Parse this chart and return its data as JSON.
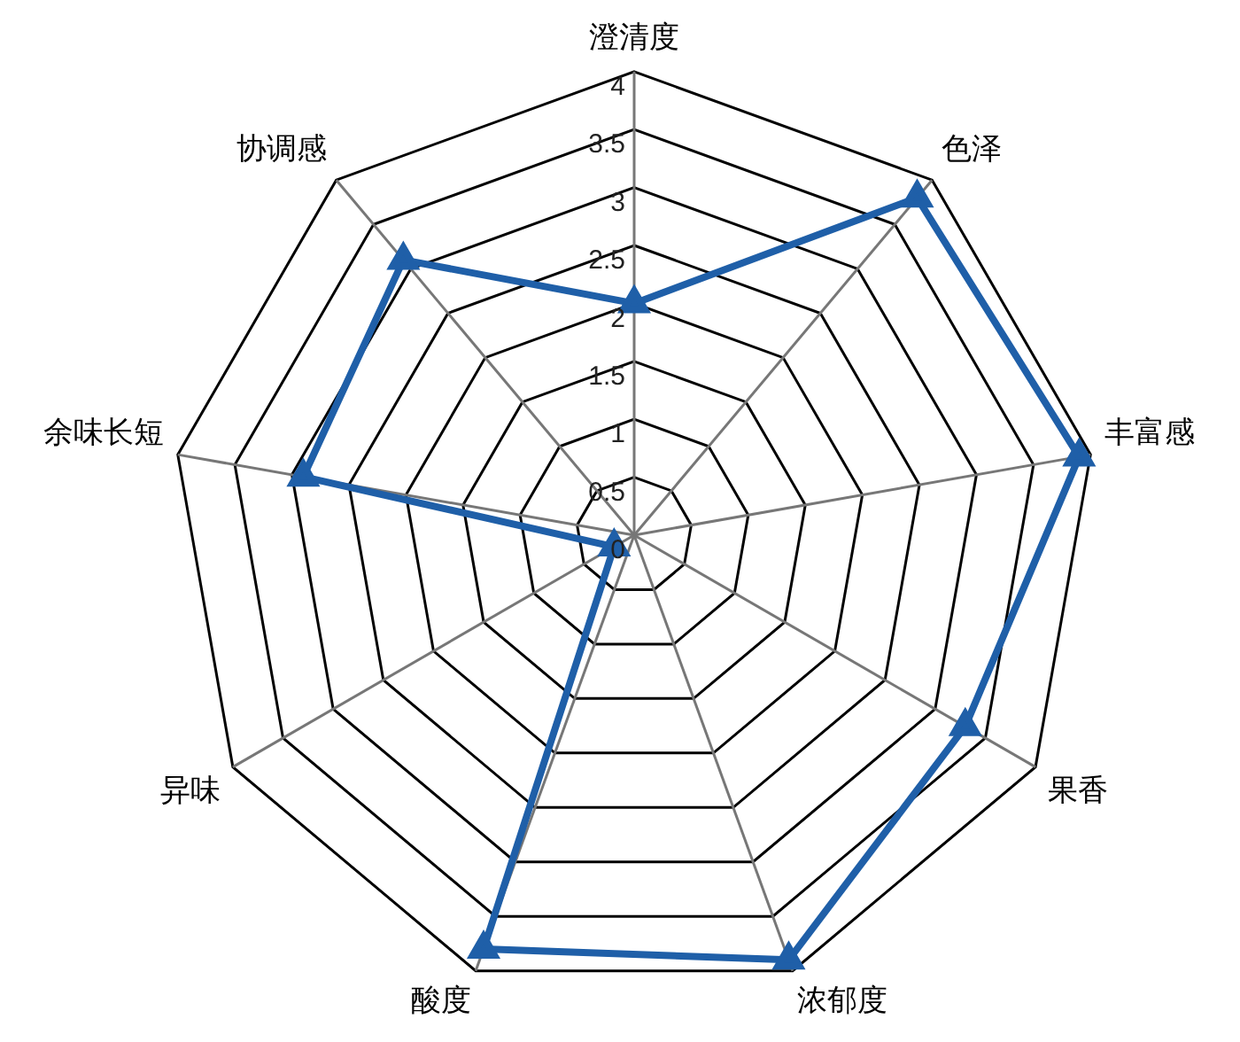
{
  "chart_data": {
    "type": "radar",
    "categories": [
      "澄清度",
      "色泽",
      "丰富感",
      "果香",
      "浓郁度",
      "酸度",
      "异味",
      "余味长短",
      "协调感"
    ],
    "series": [
      {
        "color": "#1f5fa8",
        "values": [
          2.0,
          3.8,
          3.9,
          3.3,
          3.9,
          3.8,
          0.2,
          2.9,
          3.1
        ]
      }
    ],
    "ylim": [
      0,
      4
    ],
    "yticks": [
      0,
      0.5,
      1,
      1.5,
      2,
      2.5,
      3,
      3.5,
      4
    ],
    "marker": "triangle",
    "grid": true,
    "legend": false
  }
}
